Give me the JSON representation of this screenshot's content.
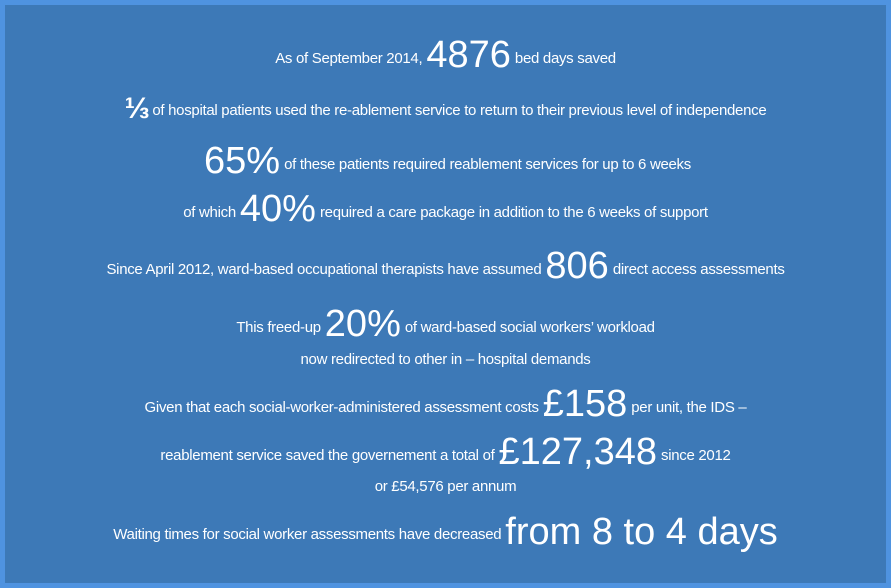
{
  "lines": [
    [
      "As of September 2014,",
      "4876",
      "bed days saved"
    ],
    [
      "⅓",
      "of hospital patients used the re-ablement service to return to their previous level of independence"
    ],
    [
      "65%",
      "of these patients required reablement services for up to 6 weeks"
    ],
    [
      "of which",
      "40%",
      "required a care package in addition to the 6 weeks of support"
    ],
    [
      "Since April 2012, ward-based occupational therapists have assumed",
      "806",
      "direct access assessments"
    ],
    [
      "This freed-up",
      "20%",
      "of ward-based social workers’ workload"
    ],
    [
      "now redirected to other in – hospital demands"
    ],
    [
      "Given that each social-worker-administered assessment costs",
      "£158",
      "per unit, the IDS –"
    ],
    [
      "reablement service saved the governement a total of",
      "£127,348",
      "since 2012"
    ],
    [
      "or £54,576 per annum"
    ],
    [
      "Waiting times for social worker assessments have decreased",
      "from 8 to 4 days"
    ]
  ]
}
